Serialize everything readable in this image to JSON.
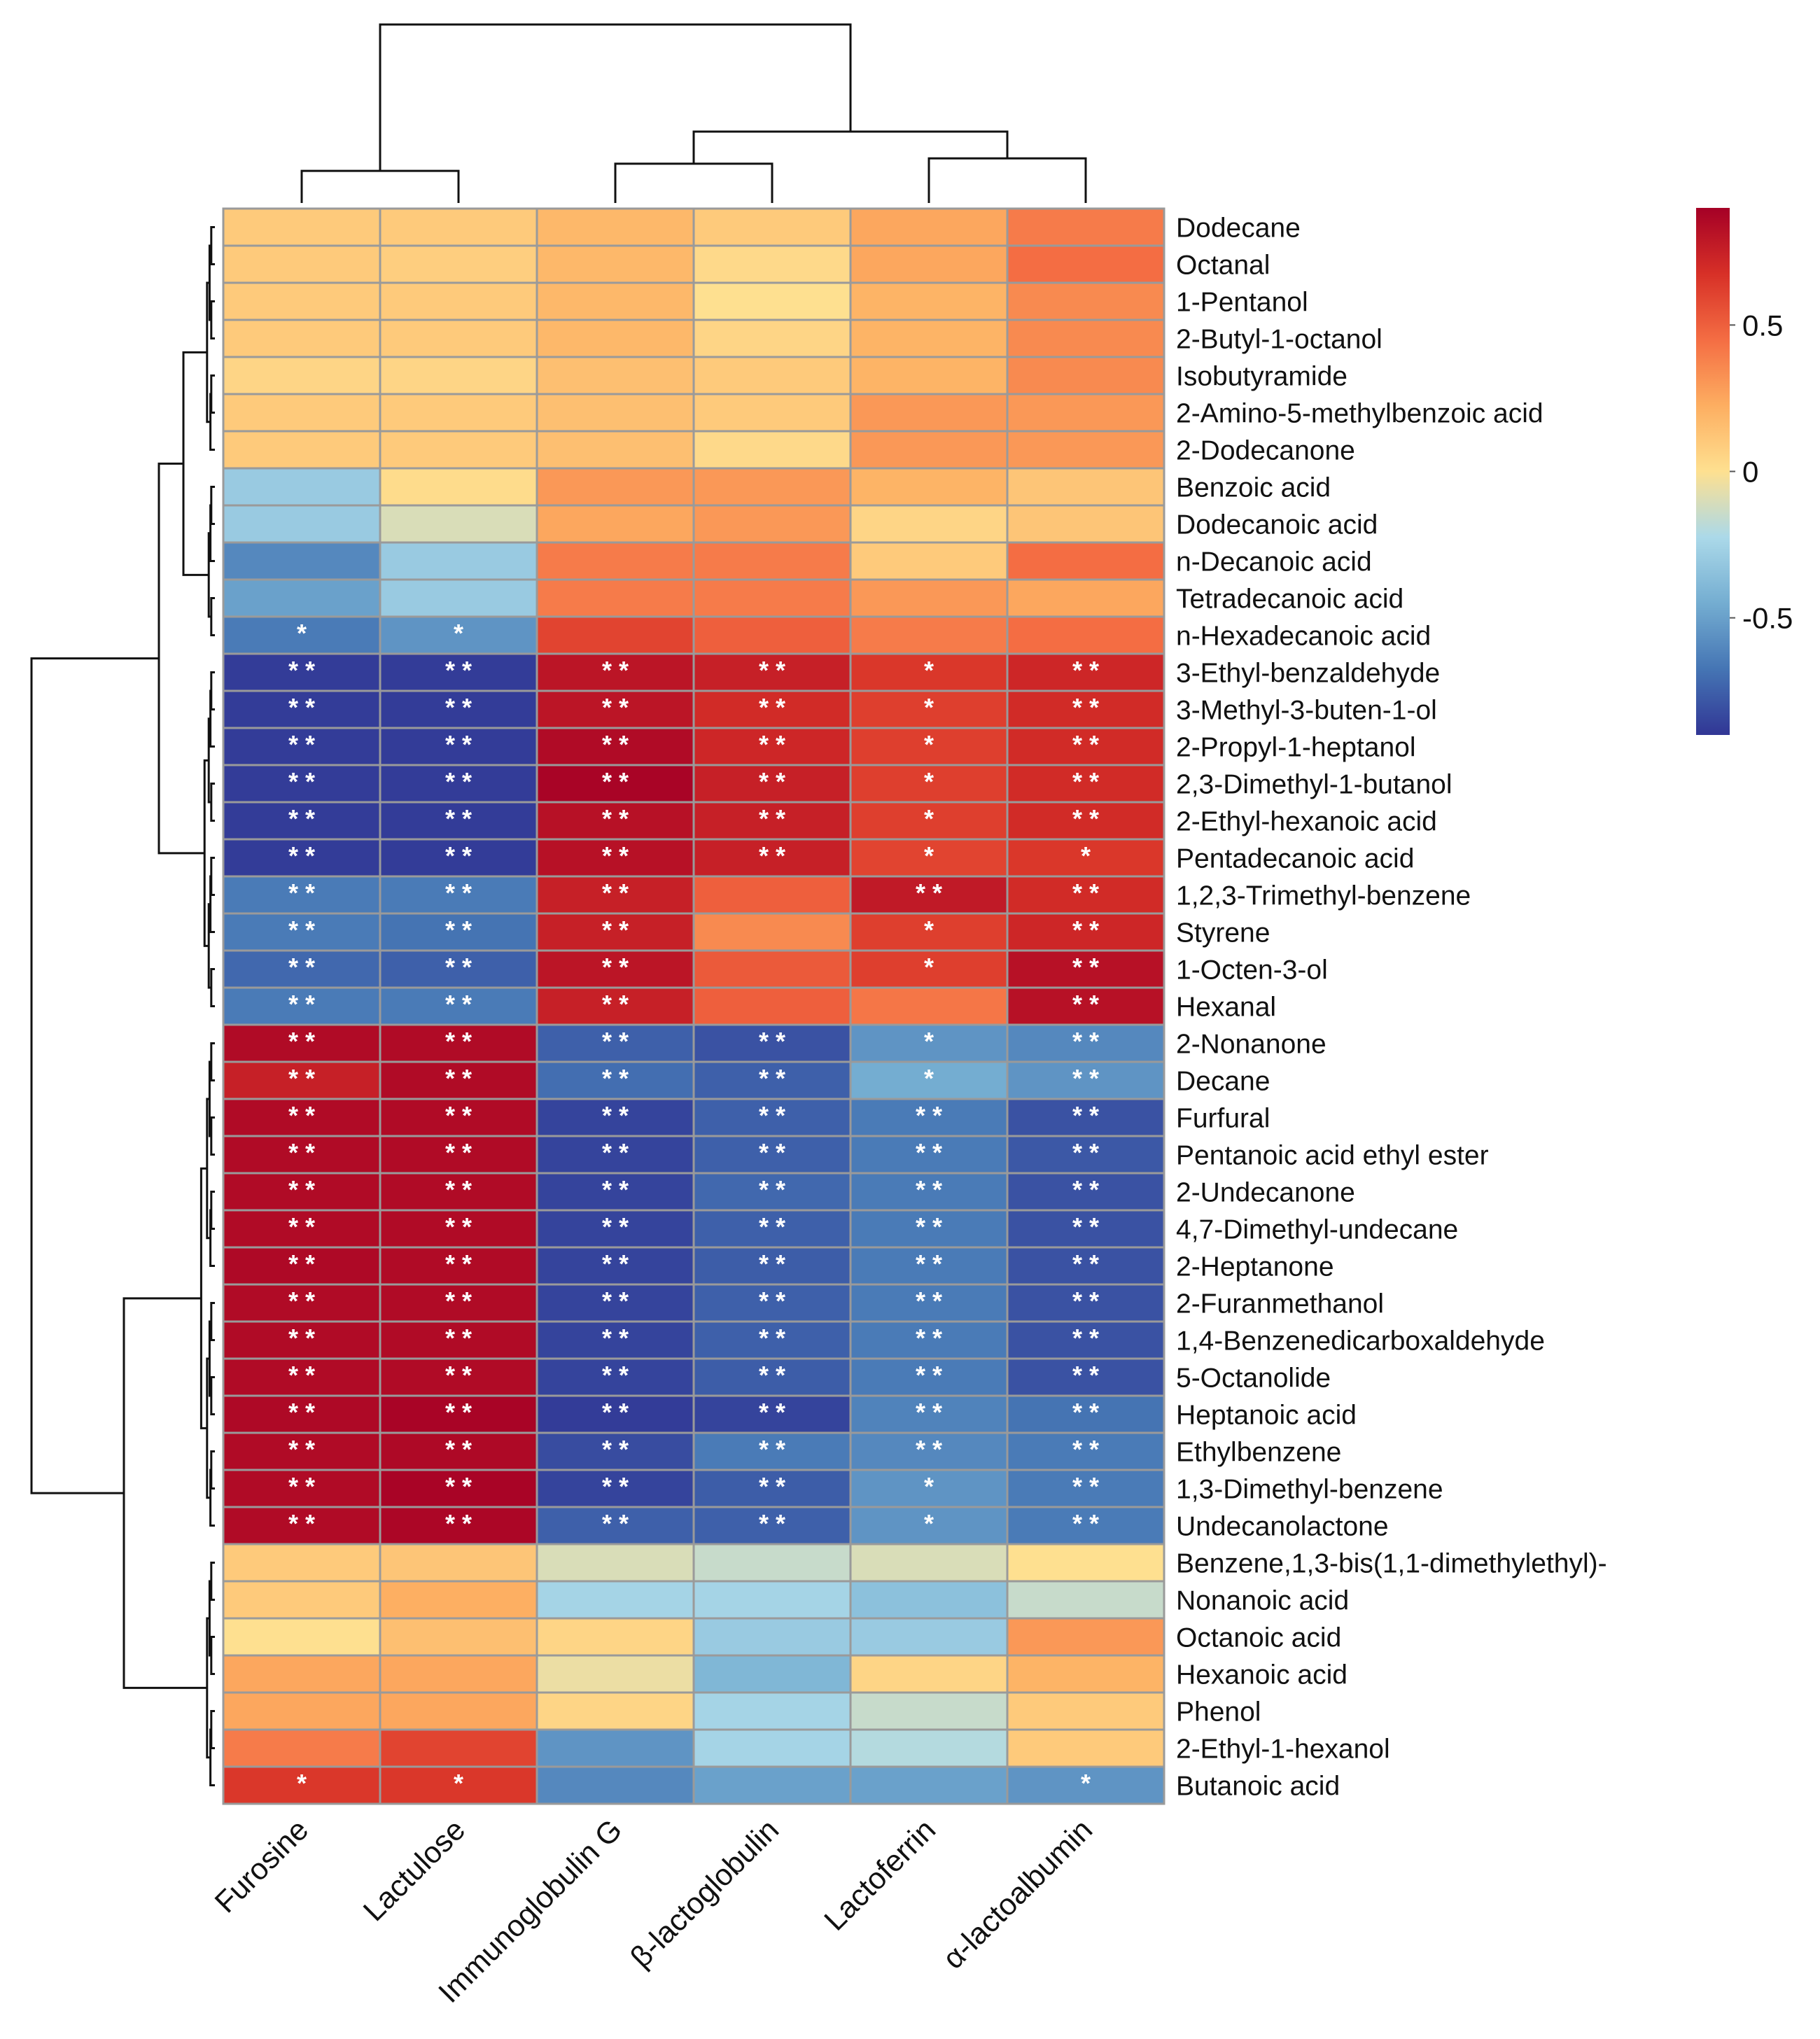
{
  "chart_data": {
    "type": "heatmap",
    "title": "",
    "color_scale": {
      "min": -0.9,
      "max": 0.9,
      "colors": [
        "#313695",
        "#4575b4",
        "#74add1",
        "#abd9e9",
        "#fee090",
        "#fdae61",
        "#f46d43",
        "#d73027",
        "#a50026"
      ],
      "legend_ticks": [
        {
          "value": 0.5,
          "label": "0.5"
        },
        {
          "value": 0,
          "label": "0"
        },
        {
          "value": -0.5,
          "label": "-0.5"
        }
      ]
    },
    "columns": [
      "Furosine",
      "Lactulose",
      "Immunoglobulin G",
      "β-lactoglobulin",
      "Lactoferrin",
      "α-lactoalbumin"
    ],
    "rows": [
      "Dodecane",
      "Octanal",
      "1-Pentanol",
      "2-Butyl-1-octanol",
      "Isobutyramide",
      "2-Amino-5-methylbenzoic acid",
      "2-Dodecanone",
      "Benzoic acid",
      "Dodecanoic acid",
      "n-Decanoic acid",
      "Tetradecanoic acid",
      "n-Hexadecanoic acid",
      "3-Ethyl-benzaldehyde",
      "3-Methyl-3-buten-1-ol",
      "2-Propyl-1-heptanol",
      "2,3-Dimethyl-1-butanol",
      "2-Ethyl-hexanoic acid",
      "Pentadecanoic acid",
      "1,2,3-Trimethyl-benzene",
      "Styrene",
      "1-Octen-3-ol",
      "Hexanal",
      "2-Nonanone",
      "Decane",
      "Furfural",
      "Pentanoic acid ethyl ester",
      "2-Undecanone",
      "4,7-Dimethyl-undecane",
      "2-Heptanone",
      "2-Furanmethanol",
      "1,4-Benzenedicarboxaldehyde",
      "5-Octanolide",
      "Heptanoic acid",
      "Ethylbenzene",
      "1,3-Dimethyl-benzene",
      "Undecanolactone",
      "Benzene,1,3-bis(1,1-dimethylethyl)-",
      "Nonanoic acid",
      "Octanoic acid",
      "Hexanoic acid",
      "Phenol",
      "2-Ethyl-1-hexanol",
      "Butanoic acid"
    ],
    "values": [
      [
        0.1,
        0.1,
        0.18,
        0.1,
        0.25,
        0.4
      ],
      [
        0.1,
        0.08,
        0.18,
        0.03,
        0.25,
        0.45
      ],
      [
        0.1,
        0.1,
        0.18,
        0.0,
        0.2,
        0.35
      ],
      [
        0.1,
        0.1,
        0.18,
        0.05,
        0.2,
        0.35
      ],
      [
        0.05,
        0.05,
        0.15,
        0.1,
        0.2,
        0.35
      ],
      [
        0.1,
        0.1,
        0.15,
        0.1,
        0.3,
        0.3
      ],
      [
        0.1,
        0.1,
        0.15,
        0.03,
        0.3,
        0.3
      ],
      [
        -0.3,
        0.02,
        0.3,
        0.3,
        0.2,
        0.12
      ],
      [
        -0.3,
        -0.1,
        0.25,
        0.3,
        0.05,
        0.12
      ],
      [
        -0.6,
        -0.3,
        0.4,
        0.4,
        0.1,
        0.45
      ],
      [
        -0.5,
        -0.3,
        0.4,
        0.4,
        0.3,
        0.25
      ],
      [
        -0.65,
        -0.55,
        0.6,
        0.5,
        0.4,
        0.45
      ],
      [
        -0.88,
        -0.88,
        0.8,
        0.75,
        0.65,
        0.72
      ],
      [
        -0.88,
        -0.88,
        0.8,
        0.7,
        0.62,
        0.7
      ],
      [
        -0.88,
        -0.88,
        0.85,
        0.72,
        0.62,
        0.7
      ],
      [
        -0.88,
        -0.88,
        0.88,
        0.75,
        0.62,
        0.7
      ],
      [
        -0.88,
        -0.88,
        0.82,
        0.75,
        0.62,
        0.7
      ],
      [
        -0.88,
        -0.88,
        0.82,
        0.75,
        0.6,
        0.65
      ],
      [
        -0.65,
        -0.65,
        0.75,
        0.5,
        0.78,
        0.7
      ],
      [
        -0.65,
        -0.68,
        0.75,
        0.35,
        0.62,
        0.72
      ],
      [
        -0.72,
        -0.75,
        0.8,
        0.52,
        0.62,
        0.82
      ],
      [
        -0.65,
        -0.65,
        0.75,
        0.5,
        0.42,
        0.82
      ],
      [
        0.85,
        0.85,
        -0.75,
        -0.8,
        -0.55,
        -0.6
      ],
      [
        0.75,
        0.85,
        -0.7,
        -0.75,
        -0.45,
        -0.55
      ],
      [
        0.85,
        0.85,
        -0.85,
        -0.75,
        -0.65,
        -0.8
      ],
      [
        0.85,
        0.85,
        -0.85,
        -0.75,
        -0.65,
        -0.78
      ],
      [
        0.85,
        0.85,
        -0.85,
        -0.72,
        -0.65,
        -0.8
      ],
      [
        0.85,
        0.85,
        -0.85,
        -0.75,
        -0.65,
        -0.8
      ],
      [
        0.86,
        0.85,
        -0.85,
        -0.76,
        -0.65,
        -0.8
      ],
      [
        0.85,
        0.85,
        -0.85,
        -0.75,
        -0.65,
        -0.8
      ],
      [
        0.85,
        0.85,
        -0.85,
        -0.75,
        -0.65,
        -0.8
      ],
      [
        0.85,
        0.85,
        -0.85,
        -0.76,
        -0.65,
        -0.8
      ],
      [
        0.86,
        0.88,
        -0.88,
        -0.85,
        -0.62,
        -0.68
      ],
      [
        0.85,
        0.86,
        -0.82,
        -0.65,
        -0.6,
        -0.65
      ],
      [
        0.85,
        0.88,
        -0.85,
        -0.76,
        -0.55,
        -0.65
      ],
      [
        0.85,
        0.87,
        -0.75,
        -0.75,
        -0.55,
        -0.65
      ],
      [
        0.1,
        0.12,
        -0.1,
        -0.15,
        -0.1,
        0.0
      ],
      [
        0.1,
        0.22,
        -0.25,
        -0.25,
        -0.35,
        -0.15
      ],
      [
        0.0,
        0.15,
        0.05,
        -0.3,
        -0.3,
        0.3
      ],
      [
        0.25,
        0.25,
        -0.05,
        -0.4,
        0.05,
        0.2
      ],
      [
        0.25,
        0.25,
        0.05,
        -0.25,
        -0.15,
        0.1
      ],
      [
        0.4,
        0.6,
        -0.55,
        -0.25,
        -0.2,
        0.1
      ],
      [
        0.65,
        0.65,
        -0.6,
        -0.5,
        -0.5,
        -0.55
      ]
    ],
    "significance": [
      [
        "",
        "",
        "",
        "",
        "",
        ""
      ],
      [
        "",
        "",
        "",
        "",
        "",
        ""
      ],
      [
        "",
        "",
        "",
        "",
        "",
        ""
      ],
      [
        "",
        "",
        "",
        "",
        "",
        ""
      ],
      [
        "",
        "",
        "",
        "",
        "",
        ""
      ],
      [
        "",
        "",
        "",
        "",
        "",
        ""
      ],
      [
        "",
        "",
        "",
        "",
        "",
        ""
      ],
      [
        "",
        "",
        "",
        "",
        "",
        ""
      ],
      [
        "",
        "",
        "",
        "",
        "",
        ""
      ],
      [
        "",
        "",
        "",
        "",
        "",
        ""
      ],
      [
        "",
        "",
        "",
        "",
        "",
        ""
      ],
      [
        "*",
        "*",
        "",
        "",
        "",
        ""
      ],
      [
        "**",
        "**",
        "**",
        "**",
        "*",
        "**"
      ],
      [
        "**",
        "**",
        "**",
        "**",
        "*",
        "**"
      ],
      [
        "**",
        "**",
        "**",
        "**",
        "*",
        "**"
      ],
      [
        "**",
        "**",
        "**",
        "**",
        "*",
        "**"
      ],
      [
        "**",
        "**",
        "**",
        "**",
        "*",
        "**"
      ],
      [
        "**",
        "**",
        "**",
        "**",
        "*",
        "*"
      ],
      [
        "**",
        "**",
        "**",
        "",
        "**",
        "**"
      ],
      [
        "**",
        "**",
        "**",
        "",
        "*",
        "**"
      ],
      [
        "**",
        "**",
        "**",
        "",
        "*",
        "**"
      ],
      [
        "**",
        "**",
        "**",
        "",
        "",
        "**"
      ],
      [
        "**",
        "**",
        "**",
        "**",
        "*",
        "**"
      ],
      [
        "**",
        "**",
        "**",
        "**",
        "*",
        "**"
      ],
      [
        "**",
        "**",
        "**",
        "**",
        "**",
        "**"
      ],
      [
        "**",
        "**",
        "**",
        "**",
        "**",
        "**"
      ],
      [
        "**",
        "**",
        "**",
        "**",
        "**",
        "**"
      ],
      [
        "**",
        "**",
        "**",
        "**",
        "**",
        "**"
      ],
      [
        "**",
        "**",
        "**",
        "**",
        "**",
        "**"
      ],
      [
        "**",
        "**",
        "**",
        "**",
        "**",
        "**"
      ],
      [
        "**",
        "**",
        "**",
        "**",
        "**",
        "**"
      ],
      [
        "**",
        "**",
        "**",
        "**",
        "**",
        "**"
      ],
      [
        "**",
        "**",
        "**",
        "**",
        "**",
        "**"
      ],
      [
        "**",
        "**",
        "**",
        "**",
        "**",
        "**"
      ],
      [
        "**",
        "**",
        "**",
        "**",
        "*",
        "**"
      ],
      [
        "**",
        "**",
        "**",
        "**",
        "*",
        "**"
      ],
      [
        "",
        "",
        "",
        "",
        "",
        ""
      ],
      [
        "",
        "",
        "",
        "",
        "",
        ""
      ],
      [
        "",
        "",
        "",
        "",
        "",
        ""
      ],
      [
        "",
        "",
        "",
        "",
        "",
        ""
      ],
      [
        "",
        "",
        "",
        "",
        "",
        ""
      ],
      [
        "",
        "",
        "",
        "",
        "",
        ""
      ],
      [
        "*",
        "*",
        "",
        "",
        "",
        "*"
      ]
    ],
    "column_dendrogram": [
      {
        "a": 0,
        "b": 1,
        "height": 0.18
      },
      {
        "a": 2,
        "b": 3,
        "height": 0.22
      },
      {
        "a": 4,
        "b": 5,
        "height": 0.25
      },
      {
        "a": 3,
        "b": 5,
        "height": 0.4,
        "left_from": 0.22,
        "right_from": 0.25
      },
      {
        "a": 1,
        "b": 4,
        "height": 1.0,
        "left_from": 0.18,
        "right_from": 0.4
      }
    ],
    "row_dendrogram_present": true
  }
}
